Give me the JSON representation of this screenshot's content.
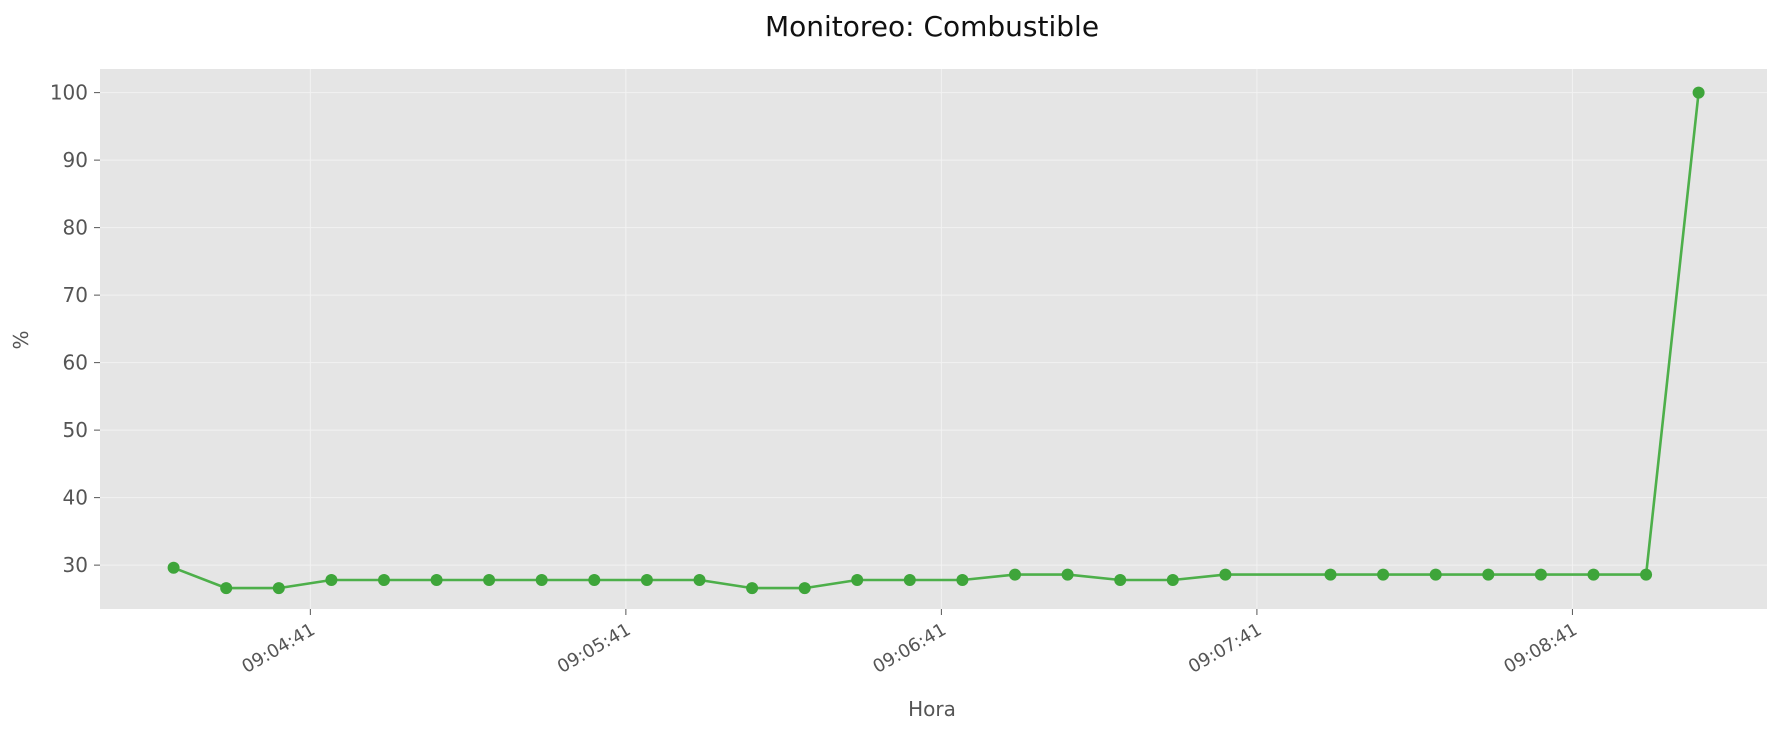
{
  "chart_data": {
    "type": "line",
    "title": "Monitoreo: Combustible",
    "xlabel": "Hora",
    "ylabel": "%",
    "ylim": [
      23.5,
      103.5
    ],
    "yticks": [
      30,
      40,
      50,
      60,
      70,
      80,
      90,
      100
    ],
    "xlim_seconds": [
      0,
      317
    ],
    "xticks": [
      {
        "label": "09:04:41",
        "t": 40
      },
      {
        "label": "09:05:41",
        "t": 100
      },
      {
        "label": "09:06:41",
        "t": 160
      },
      {
        "label": "09:07:41",
        "t": 220
      },
      {
        "label": "09:08:41",
        "t": 280
      }
    ],
    "grid": true,
    "legend": "none",
    "colors": {
      "plot_background": "#e5e5e5",
      "grid": "#f2f2f2",
      "line": "#4daf4a",
      "marker": "#3ea53a"
    },
    "series": [
      {
        "name": "",
        "x_seconds": [
          14,
          24,
          34,
          44,
          54,
          64,
          74,
          84,
          94,
          104,
          114,
          124,
          134,
          144,
          154,
          164,
          174,
          184,
          194,
          204,
          214,
          234,
          244,
          254,
          264,
          274,
          284,
          294,
          304
        ],
        "values": [
          29.6,
          26.6,
          26.6,
          27.8,
          27.8,
          27.8,
          27.8,
          27.8,
          27.8,
          27.8,
          27.8,
          26.6,
          26.6,
          27.8,
          27.8,
          27.8,
          28.6,
          28.6,
          27.8,
          27.8,
          28.6,
          28.6,
          28.6,
          28.6,
          28.6,
          28.6,
          28.6,
          28.6,
          100
        ]
      }
    ]
  }
}
